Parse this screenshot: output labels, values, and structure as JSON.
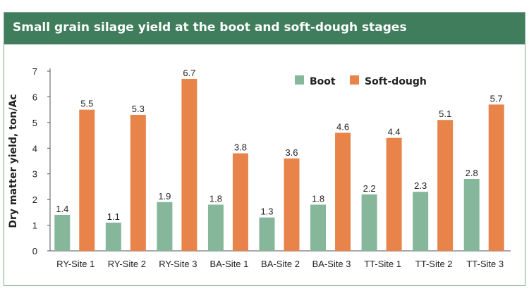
{
  "chart_data": {
    "type": "bar",
    "title": "Small grain silage yield at the boot and soft-dough stages",
    "ylabel": "Dry matter yield, ton/Ac",
    "xlabel": "",
    "ylim": [
      0,
      7
    ],
    "yticks": [
      "0",
      "1",
      "2",
      "3",
      "4",
      "5",
      "6",
      "7"
    ],
    "categories": [
      "RY-Site 1",
      "RY-Site 2",
      "RY-Site 3",
      "BA-Site 1",
      "BA-Site 2",
      "BA-Site 3",
      "TT-Site 1",
      "TT-Site 2",
      "TT-Site 3"
    ],
    "series": [
      {
        "name": "Boot",
        "color": "#86b79b",
        "values": [
          1.4,
          1.1,
          1.9,
          1.8,
          1.3,
          1.8,
          2.2,
          2.3,
          2.8
        ],
        "labels": [
          "1.4",
          "1.1",
          "1.9",
          "1.8",
          "1.3",
          "1.8",
          "2.2",
          "2.3",
          "2.8"
        ]
      },
      {
        "name": "Soft-dough",
        "color": "#e8844a",
        "values": [
          5.5,
          5.3,
          6.7,
          3.8,
          3.6,
          4.6,
          4.4,
          5.1,
          5.7
        ],
        "labels": [
          "5.5",
          "5.3",
          "6.7",
          "3.8",
          "3.6",
          "4.6",
          "4.4",
          "5.1",
          "5.7"
        ]
      }
    ],
    "grid": false,
    "legend_position": "top-right"
  }
}
